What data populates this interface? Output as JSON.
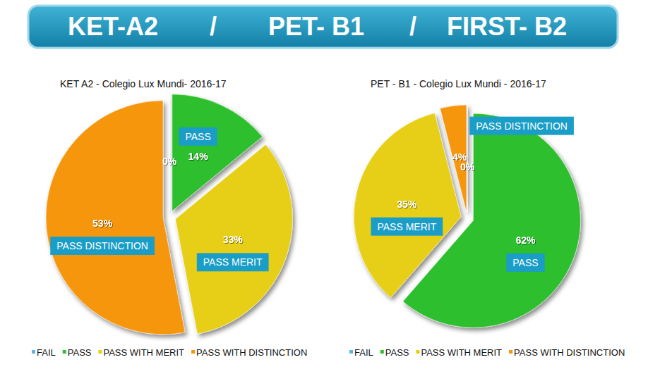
{
  "header": {
    "parts": [
      "KET-A2",
      "/",
      "PET- B1",
      "/",
      "FIRST- B2"
    ]
  },
  "chart_data": [
    {
      "type": "pie",
      "title": "KET A2 - Colegio Lux Mundi-  2016-17",
      "categories": [
        "FAIL",
        "PASS",
        "PASS WITH MERIT",
        "PASS WITH DISTINCTION"
      ],
      "values": [
        0,
        14,
        33,
        53
      ],
      "value_labels": [
        "0%",
        "14%",
        "33%",
        "53%"
      ],
      "callouts": [
        null,
        "PASS",
        "PASS MERIT",
        "PASS DISTINCTION"
      ],
      "colors": [
        "#5ab4e5",
        "#2fbf2f",
        "#e6cf14",
        "#f5960e"
      ],
      "data_labels": true,
      "legend": "bottom"
    },
    {
      "type": "pie",
      "title": "PET - B1 - Colegio Lux Mundi - 2016-17",
      "categories": [
        "FAIL",
        "PASS",
        "PASS WITH MERIT",
        "PASS WITH DISTINCTION"
      ],
      "values": [
        0,
        62,
        35,
        4
      ],
      "value_labels": [
        "0%",
        "62%",
        "35%",
        "4%"
      ],
      "callouts": [
        null,
        "PASS",
        "PASS MERIT",
        "PASS DISTINCTION"
      ],
      "colors": [
        "#5ab4e5",
        "#2fbf2f",
        "#e6cf14",
        "#f5960e"
      ],
      "data_labels": true,
      "legend": "bottom"
    }
  ]
}
